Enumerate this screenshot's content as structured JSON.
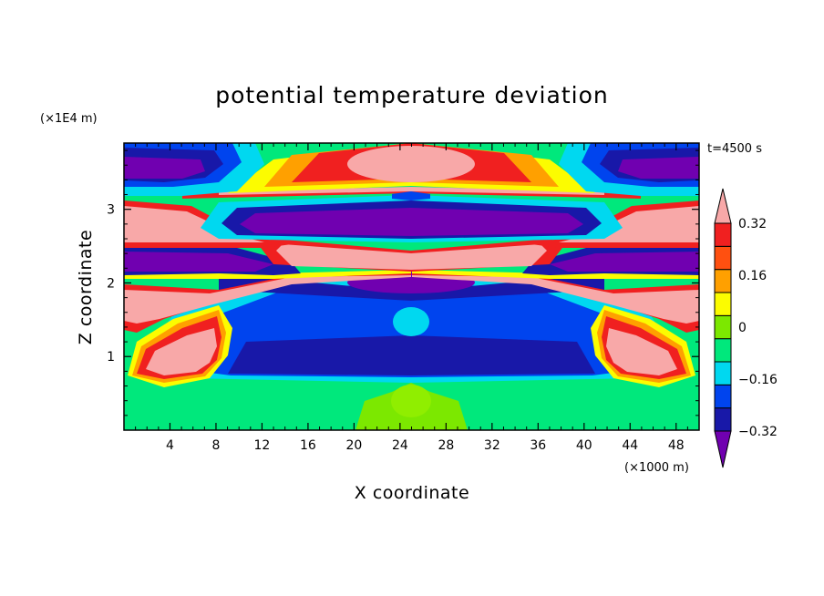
{
  "chart_data": {
    "type": "heatmap",
    "title": "potential temperature deviation",
    "xlabel": "X coordinate",
    "ylabel": "Z coordinate",
    "x_unit": "(×1000 m)",
    "y_unit": "(×1E4 m)",
    "time_label": "t=4500 s",
    "xlim": [
      0,
      50
    ],
    "ylim": [
      0,
      3.9
    ],
    "x_ticks": [
      4,
      8,
      12,
      16,
      20,
      24,
      28,
      32,
      36,
      40,
      44,
      48
    ],
    "x_tick_labels": [
      "4",
      "8",
      "12",
      "16",
      "20",
      "24",
      "28",
      "32",
      "36",
      "40",
      "44",
      "48"
    ],
    "y_ticks": [
      1,
      2,
      3
    ],
    "y_tick_labels": [
      "1",
      "2",
      "3"
    ],
    "colorbar": {
      "levels": [
        -0.4,
        -0.32,
        -0.24,
        -0.16,
        -0.08,
        0,
        0.08,
        0.16,
        0.24,
        0.32,
        0.4
      ],
      "labels": [
        "0.32",
        "0.16",
        "0",
        "−0.16",
        "−0.32"
      ],
      "label_values": [
        0.32,
        0.16,
        0,
        -0.16,
        -0.32
      ],
      "colors": [
        "#7000b0",
        "#1818a8",
        "#0044ee",
        "#00d8f0",
        "#00e87c",
        "#7ce800",
        "#fcfc00",
        "#ffa000",
        "#ff5010",
        "#f02020",
        "#f8a8a8"
      ]
    },
    "regions_note_colors": {
      "pink": "#f8a8a8",
      "red": "#f02020",
      "orange": "#ffa000",
      "yellow": "#fcfc00",
      "lime": "#7ce800",
      "green": "#00e87c",
      "cyan": "#00d8f0",
      "blue": "#0044ee",
      "navy": "#1818a8",
      "purple": "#7000b0"
    }
  }
}
